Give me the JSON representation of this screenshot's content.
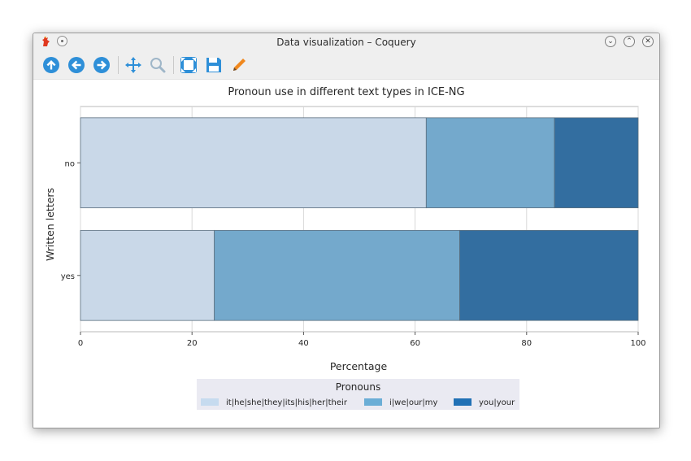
{
  "window": {
    "title": "Data visualization – Coquery",
    "app_icon": "coquery-rooster-icon",
    "controls": [
      "minimize",
      "maximize",
      "close"
    ]
  },
  "toolbar": {
    "items": [
      {
        "name": "up-arrow-icon",
        "tooltip": ""
      },
      {
        "name": "back-arrow-icon",
        "tooltip": ""
      },
      {
        "name": "forward-arrow-icon",
        "tooltip": ""
      },
      {
        "name": "pan-icon",
        "tooltip": ""
      },
      {
        "name": "zoom-icon",
        "tooltip": ""
      },
      {
        "name": "subplots-icon",
        "tooltip": ""
      },
      {
        "name": "save-icon",
        "tooltip": ""
      },
      {
        "name": "edit-icon",
        "tooltip": ""
      }
    ]
  },
  "colors": {
    "series1": "#c9d8e8",
    "series2": "#74a9cc",
    "series3": "#336ea0",
    "legend1": "#c6dbef",
    "legend2": "#6baed6",
    "legend3": "#2171b5",
    "toolbar_blue": "#2e8fd8",
    "pencil": "#f0881e"
  },
  "chart_data": {
    "type": "bar",
    "orientation": "horizontal",
    "stacked": true,
    "title": "Pronoun use in different text types in ICE-NG",
    "xlabel": "Percentage",
    "ylabel": "Written letters",
    "categories": [
      "no",
      "yes"
    ],
    "xlim": [
      0,
      100
    ],
    "xticks": [
      "0",
      "20",
      "40",
      "60",
      "80",
      "100"
    ],
    "grid": true,
    "series": [
      {
        "name": "it|he|she|they|its|his|her|their",
        "values": [
          62,
          24
        ]
      },
      {
        "name": "i|we|our|my",
        "values": [
          23,
          44
        ]
      },
      {
        "name": "you|your",
        "values": [
          15,
          32
        ]
      }
    ],
    "legend": {
      "title": "Pronouns",
      "placement": "bottom-center"
    }
  }
}
